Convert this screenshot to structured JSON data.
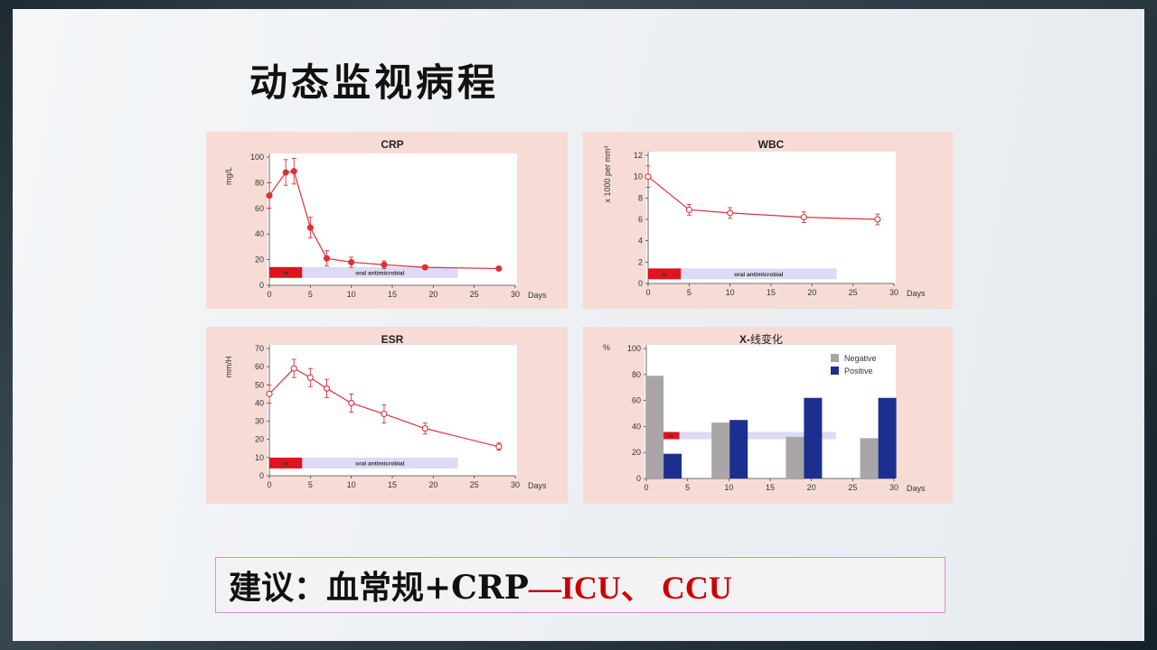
{
  "slide": {
    "title": "动态监视病程",
    "recommendation": {
      "prefix": "建议：血常规+CRP",
      "highlight": "—ICU、 CCU"
    }
  },
  "therapy_bar": {
    "iv_label": "iv",
    "oral_label": "oral antimicrobial"
  },
  "chart_data": [
    {
      "id": "crp",
      "type": "line",
      "title": "CRP",
      "xlabel": "Days",
      "ylabel": "mg/L",
      "xlim": [
        0,
        30
      ],
      "ylim": [
        0,
        100
      ],
      "xticks": [
        0,
        5,
        10,
        15,
        20,
        25,
        30
      ],
      "yticks": [
        0,
        20,
        40,
        60,
        80,
        100
      ],
      "x": [
        0,
        2,
        3,
        5,
        7,
        10,
        14,
        19,
        28
      ],
      "y": [
        70,
        88,
        89,
        45,
        21,
        18,
        16,
        14,
        13
      ],
      "err": [
        10,
        10,
        10,
        8,
        6,
        4,
        3,
        1,
        1
      ],
      "marker": "filled",
      "therapy": {
        "iv": [
          0,
          4
        ],
        "oral": [
          4,
          23
        ]
      }
    },
    {
      "id": "wbc",
      "type": "line",
      "title": "WBC",
      "xlabel": "Days",
      "ylabel": "x 1000 per mm³",
      "xlim": [
        0,
        30
      ],
      "ylim": [
        0,
        12
      ],
      "xticks": [
        0,
        5,
        10,
        15,
        20,
        25,
        30
      ],
      "yticks": [
        0,
        2,
        4,
        6,
        8,
        10,
        12
      ],
      "x": [
        0,
        5,
        10,
        19,
        28
      ],
      "y": [
        10,
        6.9,
        6.6,
        6.2,
        6.0
      ],
      "err": [
        1,
        0.5,
        0.5,
        0.5,
        0.5
      ],
      "marker": "open",
      "therapy": {
        "iv": [
          0,
          4
        ],
        "oral": [
          4,
          23
        ]
      }
    },
    {
      "id": "esr",
      "type": "line",
      "title": "ESR",
      "xlabel": "Days",
      "ylabel": "mm/H",
      "xlim": [
        0,
        30
      ],
      "ylim": [
        0,
        70
      ],
      "xticks": [
        0,
        5,
        10,
        15,
        20,
        25,
        30
      ],
      "yticks": [
        0,
        10,
        20,
        30,
        40,
        50,
        60,
        70
      ],
      "x": [
        0,
        3,
        5,
        7,
        10,
        14,
        19,
        28
      ],
      "y": [
        45,
        59,
        54,
        48,
        40,
        34,
        26,
        16
      ],
      "err": [
        5,
        5,
        5,
        5,
        5,
        5,
        3,
        2
      ],
      "marker": "open",
      "therapy": {
        "iv": [
          0,
          4
        ],
        "oral": [
          4,
          23
        ]
      }
    },
    {
      "id": "xray",
      "type": "bar",
      "title_bold": "X-",
      "title_rest": "线变化",
      "xlabel": "Days",
      "ylabel": "%",
      "xlim": [
        0,
        30
      ],
      "ylim": [
        0,
        100
      ],
      "xticks": [
        0,
        5,
        10,
        15,
        20,
        25,
        30
      ],
      "yticks": [
        0,
        20,
        40,
        60,
        80,
        100
      ],
      "legend_position": "top-right",
      "groups": [
        {
          "x": 1,
          "negative": 79,
          "positive": 19
        },
        {
          "x": 9,
          "negative": 43,
          "positive": 45
        },
        {
          "x": 18,
          "negative": 32,
          "positive": 62
        },
        {
          "x": 27,
          "negative": 31,
          "positive": 62
        }
      ],
      "series": [
        {
          "name": "Negative",
          "color": "#a9a5a8"
        },
        {
          "name": "Positive",
          "color": "#1c2f8f"
        }
      ],
      "therapy": {
        "iv": [
          2,
          4
        ],
        "oral": [
          4,
          23
        ]
      }
    }
  ]
}
